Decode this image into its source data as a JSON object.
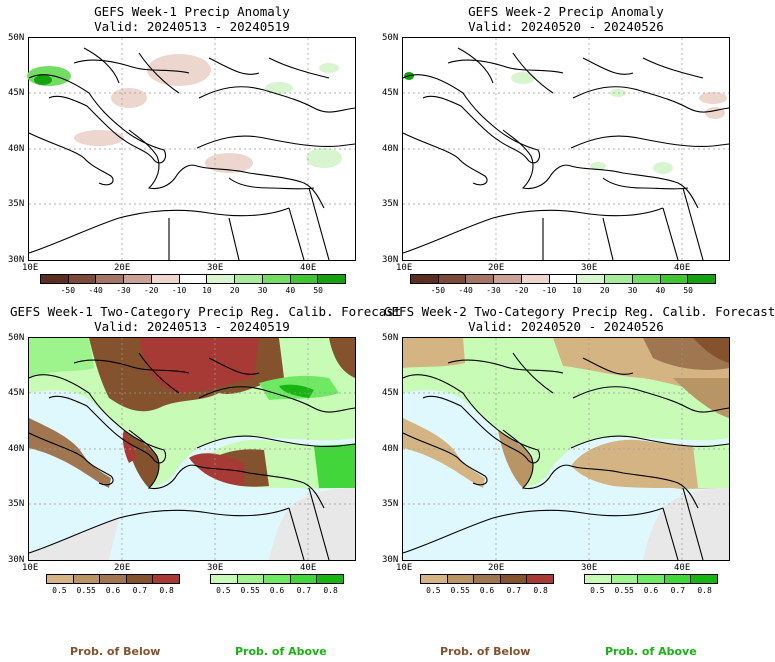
{
  "panels": [
    {
      "title": "GEFS Week-1 Precip Anomaly",
      "valid": "Valid: 20240513 - 20240519"
    },
    {
      "title": "GEFS Week-2 Precip Anomaly",
      "valid": "Valid: 20240520 - 20240526"
    },
    {
      "title": "GEFS Week-1 Two-Category Precip Reg. Calib. Forecast",
      "valid": "Valid: 20240513 - 20240519"
    },
    {
      "title": "GEFS Week-2 Two-Category Precip Reg. Calib. Forecast",
      "valid": "Valid: 20240520 - 20240526"
    }
  ],
  "axes": {
    "lat_labels": [
      "50N",
      "45N",
      "40N",
      "35N",
      "30N"
    ],
    "lon_labels": [
      "10E",
      "20E",
      "30E",
      "40E"
    ]
  },
  "anomaly_colorbar": {
    "ticks": [
      "-50",
      "-40",
      "-30",
      "-20",
      "-10",
      "10",
      "20",
      "30",
      "40",
      "50"
    ],
    "colors": [
      "#5a2e23",
      "#7b4a3c",
      "#a47466",
      "#c9a196",
      "#ecd6cd",
      "#ffffff",
      "#d8f5cf",
      "#a7ec99",
      "#72dc63",
      "#3fc631",
      "#14a20e"
    ]
  },
  "prob_colorbar": {
    "below_ticks": [
      "0.5",
      "0.55",
      "0.6",
      "0.7",
      "0.8"
    ],
    "above_ticks": [
      "0.5",
      "0.55",
      "0.6",
      "0.7",
      "0.8"
    ],
    "below_colors": [
      "#d4b483",
      "#b99565",
      "#9f7650",
      "#84522d",
      "#a83a36"
    ],
    "above_colors": [
      "#c7fbb6",
      "#9df38c",
      "#6fe963",
      "#43d63b",
      "#17b412"
    ]
  },
  "legend": {
    "below_left": "Prob. of Below",
    "above_left": "Prob. of Above",
    "below_right": "Prob. of Below",
    "above_right": "Prob. of Above"
  },
  "colors": {
    "sea": "#dff8fd",
    "land_white": "#ffffff",
    "no_data": "#e8e8e8",
    "grid": "#9a9a9a"
  }
}
